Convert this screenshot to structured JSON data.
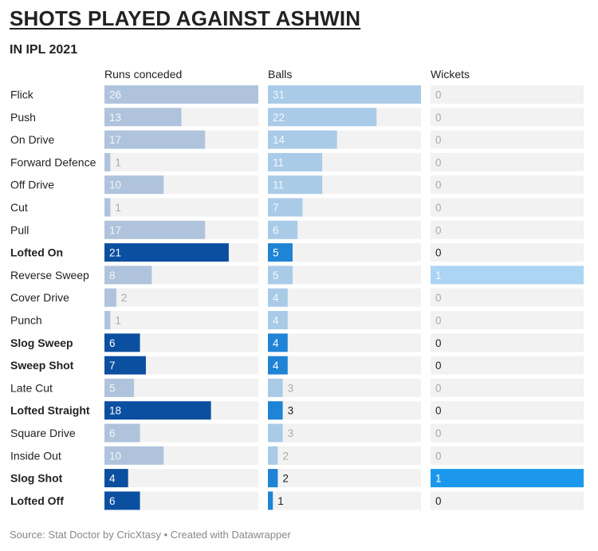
{
  "title": "SHOTS PLAYED AGAINST ASHWIN",
  "subtitle": "IN IPL 2021",
  "source": "Source: Stat Doctor by CricXtasy • Created with Datawrapper",
  "colors": {
    "runs_light": "#afc3dc",
    "runs_dark": "#0b4fa0",
    "balls_light": "#a9cbe8",
    "balls_dark": "#1f83d6",
    "wickets_light": "#acd4f3",
    "wickets_dark": "#1b98eb",
    "track": "#f2f2f2",
    "muted_text": "#aaaaaa"
  },
  "chart_data": {
    "type": "bar",
    "orientation": "horizontal",
    "categories": [
      "Flick",
      "Push",
      "On Drive",
      "Forward Defence",
      "Off Drive",
      "Cut",
      "Pull",
      "Lofted On",
      "Reverse Sweep",
      "Cover Drive",
      "Punch",
      "Slog Sweep",
      "Sweep Shot",
      "Late Cut",
      "Lofted Straight",
      "Square Drive",
      "Inside Out",
      "Slog Shot",
      "Lofted Off"
    ],
    "highlighted": [
      "Lofted On",
      "Slog Sweep",
      "Sweep Shot",
      "Lofted Straight",
      "Slog Shot",
      "Lofted Off"
    ],
    "series": [
      {
        "name": "Runs conceded",
        "values": [
          26,
          13,
          17,
          1,
          10,
          1,
          17,
          21,
          8,
          2,
          1,
          6,
          7,
          5,
          18,
          6,
          10,
          4,
          6
        ],
        "max": 26
      },
      {
        "name": "Balls",
        "values": [
          31,
          22,
          14,
          11,
          11,
          7,
          6,
          5,
          5,
          4,
          4,
          4,
          4,
          3,
          3,
          3,
          2,
          2,
          1
        ],
        "max": 31
      },
      {
        "name": "Wickets",
        "values": [
          0,
          0,
          0,
          0,
          0,
          0,
          0,
          0,
          1,
          0,
          0,
          0,
          0,
          0,
          0,
          0,
          0,
          1,
          0
        ],
        "max": 1
      }
    ]
  }
}
